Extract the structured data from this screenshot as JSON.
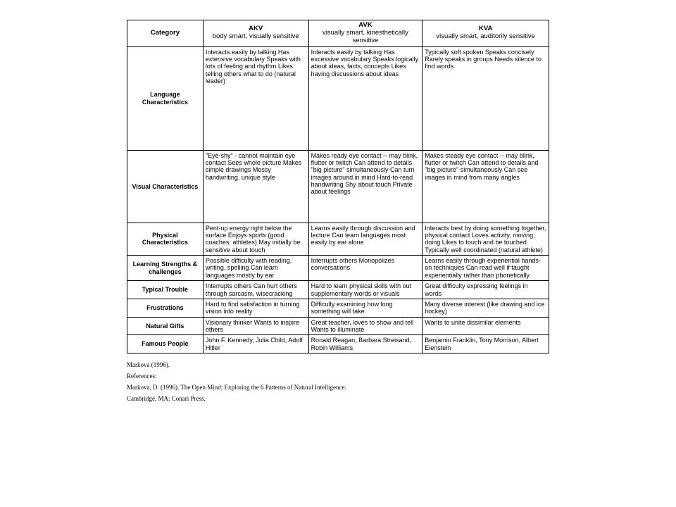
{
  "headers": {
    "category": "Category",
    "akv_main": "AKV",
    "akv_sub": "body smart, visually sensitive",
    "avk_main": "AVK",
    "avk_sub": "visually smart, kinesthetically sensitive",
    "kva_main": "KVA",
    "kva_sub": "visually smart, auditorily sensitive"
  },
  "rows": [
    {
      "cat": "Language Characteristics",
      "akv": "Interacts easily by talking\nHas extensive vocabulary\nSpeaks with lots of feeling and rhythm\nLikes telling others what to do (natural leader)",
      "avk": "Interacts easily by talking\nHas excessive vocabulary\nSpeaks logically about ideas, facts, concepts\nLikes having discussions about ideas",
      "kva": "Typically soft spoken\nSpeaks concisely\nRarely speaks in groups\nNeeds silence to find words"
    },
    {
      "cat": "Visual Characteristics",
      "akv": "\"Eye-shy\" - cannot maintain eye contact\nSees whole picture\nMakes simple drawings\nMessy handwriting, unique style",
      "avk": "Makes ready eye contact -- may blink, flutter or twitch\nCan attend to details \"big picture\" simultaneously\nCan turn images around in mind\nHard-to-read handwriting\nShy about touch\nPrivate about feelings",
      "kva": "Makes steady eye contact -- may blink, flutter or twitch\nCan attend to details and \"big picture\" simultaneously\nCan see images in mind from many angles"
    },
    {
      "cat": "Physical Characteristics",
      "akv": "Pent-up energy right below the surface\nEnjoys sports (good coaches, athletes)\nMay initially be sensitive about touch",
      "avk": "Learns easily through discussion and lecture\nCan learn languages most easily by ear alone",
      "kva": " Interacts best by doing something together, physical contact\nLoves activity, moving, doing\nLikes to touch and be touched\nTypically well coordinated (natural athlete)"
    },
    {
      "cat": "Learning Strengths & challenges",
      "akv": "Possible difficulty with reading, writing, spelling\nCan learn languages mostly by ear",
      "avk": "Interrupts others\nMonopolizes conversations",
      "kva": "Learns easily through experiential hands-on techniques\nCan read well if taught experientially rather than phonetically"
    },
    {
      "cat": "Typical Trouble",
      "akv": "Interrupts others\nCan hurt others through sarcasm, wisecracking",
      "avk": "Hard to learn physical skills with out supplementary words or visuals",
      "kva": "Great difficulty expressing feelings in words"
    },
    {
      "cat": "Frustrations",
      "akv": "Hard to find satisfaction in turning vision into reality",
      "avk": "Difficulty examining how long something will take",
      "kva": "Many diverse interest (like drawing and ice hockey)"
    },
    {
      "cat": "Natural Gifts",
      "akv": "Visionary thinker\nWants to inspire others",
      "avk": "Great teacher, loves to show and tell\nWants to illuminate",
      "kva": "Wants to unite dissimilar elements"
    },
    {
      "cat": "Famous People",
      "akv": "John F. Kennedy, Julia Child, Adolf Hitler",
      "avk": "Ronald Reagan, Barbara Streisand, Robin Williams",
      "kva": "Benjamin Franklin, Tony Morrison, Albert Eienstein"
    }
  ],
  "refs": {
    "l1": "Markova  (1996).",
    "l2": "References:",
    "l3": "Markova, D. (1996). The Open Mind: Exploring the 6 Patterns of Natural Intelligence.",
    "l4": "Cambridge, MA: Conari Press."
  },
  "row_classes": [
    "tall",
    "med",
    "",
    "",
    "",
    "",
    "",
    ""
  ]
}
